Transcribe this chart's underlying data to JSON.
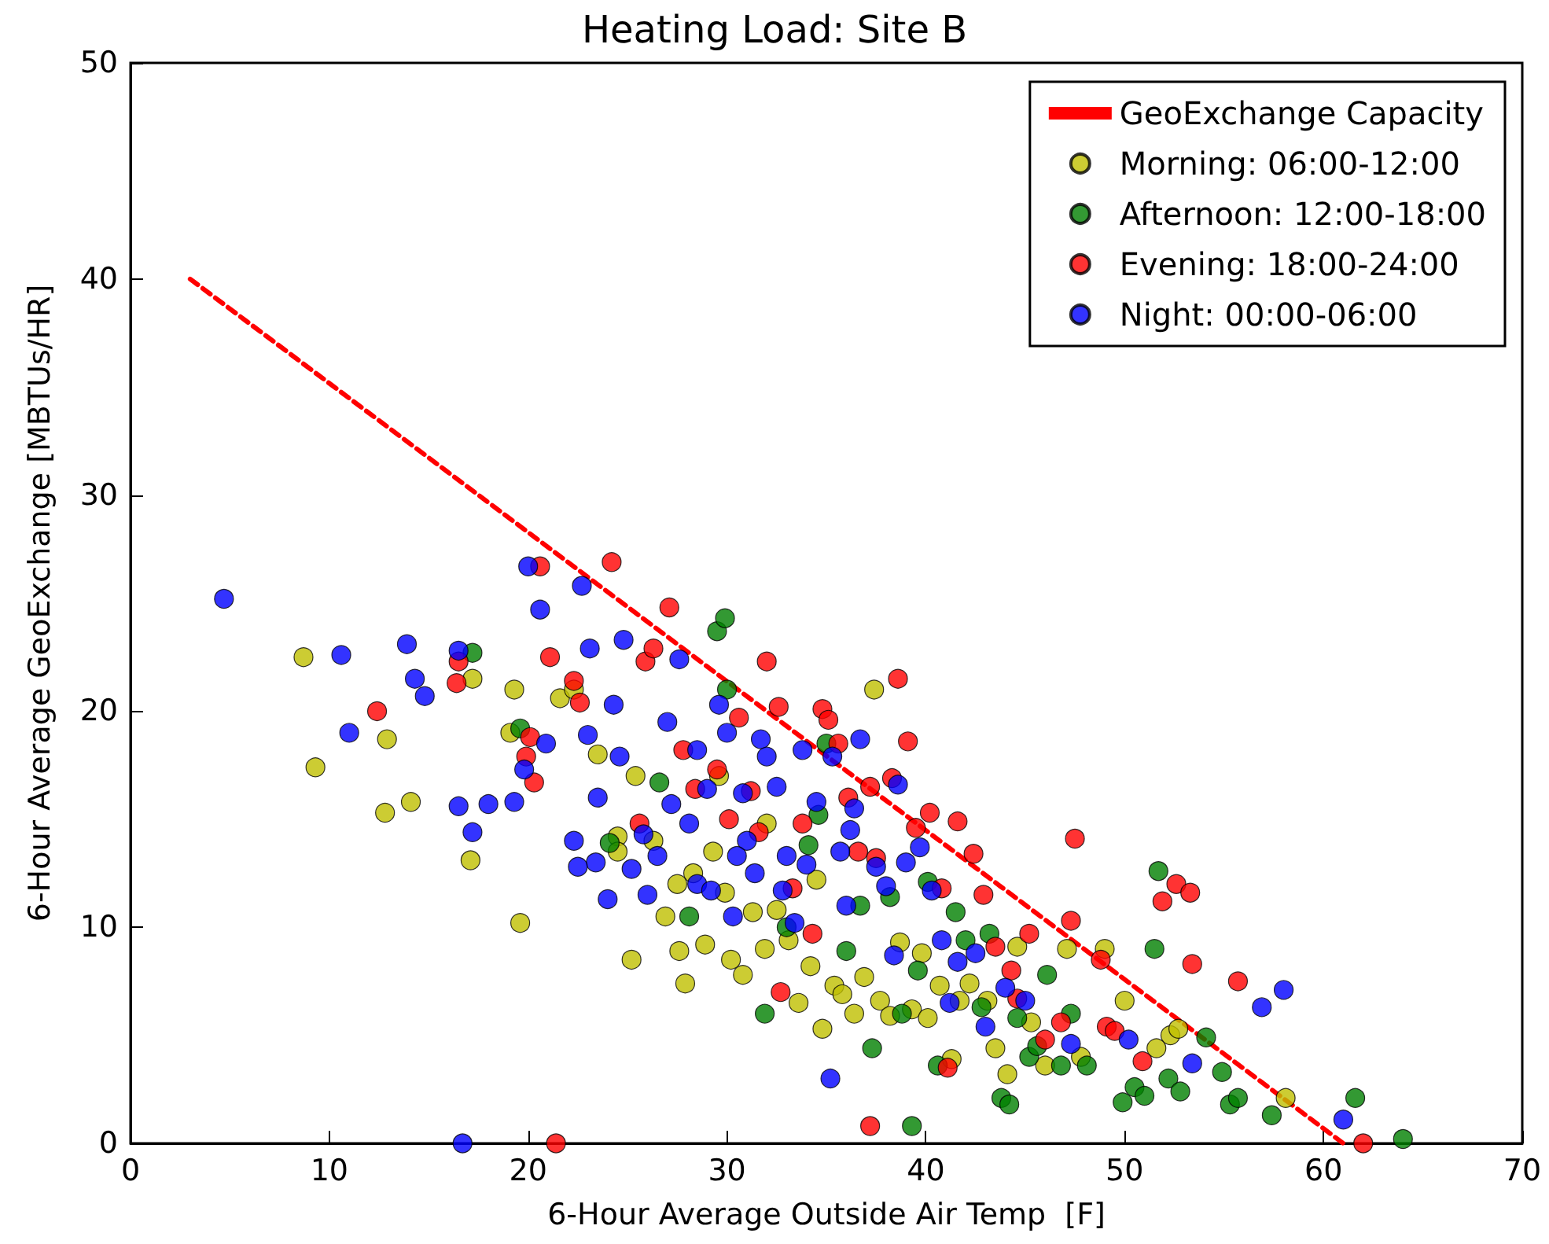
{
  "chart_data": {
    "type": "scatter",
    "title": "Heating Load: Site B",
    "xlabel": "6-Hour Average Outside Air Temp  [F]",
    "ylabel": "6-Hour Average GeoExchange [MBTUs/HR]",
    "xlim": [
      0,
      70
    ],
    "ylim": [
      0,
      50
    ],
    "xticks": [
      0,
      10,
      20,
      30,
      40,
      50,
      60,
      70
    ],
    "yticks": [
      0,
      10,
      20,
      30,
      40,
      50
    ],
    "grid": false,
    "legend": "top right",
    "marker": "circle",
    "series": [
      {
        "name": "GeoExchange Capacity",
        "type": "line",
        "line_style": "dashed",
        "marker": "none",
        "color": "#ff0000",
        "x": [
          3,
          61
        ],
        "values": [
          40,
          0
        ]
      },
      {
        "name": "Morning: 06:00-12:00",
        "color": "#bfbf00",
        "x": [
          8.7,
          9.3,
          12.8,
          12.9,
          14.1,
          17.1,
          17.2,
          19.1,
          19.6,
          19.3,
          21.6,
          22.3,
          23.5,
          24.5,
          25.2,
          25.4,
          26.3,
          26.9,
          27.6,
          27.9,
          28.3,
          28.9,
          29.3,
          29.9,
          30.2,
          30.8,
          31.3,
          31.9,
          32.5,
          33.1,
          33.6,
          34.2,
          34.8,
          35.4,
          35.8,
          36.4,
          36.9,
          37.4,
          37.7,
          38.2,
          38.7,
          39.3,
          39.8,
          40.1,
          40.7,
          41.3,
          41.7,
          42.2,
          43.1,
          43.5,
          44.1,
          44.6,
          45.3,
          46,
          47.1,
          47.8,
          49,
          50,
          52.3,
          52.7,
          51.6,
          58.1,
          29.6,
          24.5,
          34.5,
          32,
          27.5
        ],
        "values": [
          22.5,
          17.4,
          15.3,
          18.7,
          15.8,
          13.1,
          21.5,
          19,
          10.2,
          21,
          20.6,
          21,
          18,
          14.2,
          8.5,
          17,
          14,
          10.5,
          8.9,
          7.4,
          12.5,
          9.2,
          13.5,
          11.6,
          8.5,
          7.8,
          10.7,
          9,
          10.8,
          9.4,
          6.5,
          8.2,
          5.3,
          7.3,
          6.9,
          6,
          7.7,
          21,
          6.6,
          5.9,
          9.3,
          6.2,
          8.8,
          5.8,
          7.3,
          3.9,
          6.6,
          7.4,
          6.6,
          4.4,
          3.2,
          9.1,
          5.6,
          3.6,
          9,
          4,
          9,
          6.6,
          5,
          5.3,
          4.4,
          2.1,
          17,
          13.5,
          12.2,
          14.8,
          12
        ]
      },
      {
        "name": "Afternoon: 12:00-18:00",
        "color": "#008000",
        "x": [
          17.2,
          19.6,
          24.1,
          26.6,
          28.1,
          29.5,
          29.9,
          30,
          31.9,
          34.1,
          34.6,
          35,
          36,
          37.3,
          38.2,
          39.3,
          39.6,
          40.1,
          40.6,
          41.5,
          42,
          42.8,
          43.2,
          43.8,
          44.2,
          44.6,
          45.2,
          45.6,
          46.1,
          46.8,
          47.3,
          48.1,
          49.9,
          50.5,
          51,
          51.5,
          51.7,
          52.2,
          52.8,
          54.1,
          54.9,
          55.3,
          55.7,
          57.4,
          61.6,
          64,
          36.7,
          33,
          38.8
        ],
        "values": [
          22.7,
          19.2,
          13.9,
          16.7,
          10.5,
          23.7,
          24.3,
          21,
          6,
          13.8,
          15.2,
          18.5,
          8.9,
          4.4,
          11.4,
          0.8,
          8,
          12.1,
          3.6,
          10.7,
          9.4,
          6.3,
          9.7,
          2.1,
          1.8,
          5.8,
          4,
          4.5,
          7.8,
          3.6,
          6,
          3.6,
          1.9,
          2.6,
          2.2,
          9,
          12.6,
          3,
          2.4,
          4.9,
          3.3,
          1.8,
          2.1,
          1.3,
          2.1,
          0.2,
          11,
          10,
          6
        ]
      },
      {
        "name": "Evening: 18:00-24:00",
        "color": "#ff0000",
        "x": [
          12.4,
          16.4,
          16.5,
          19.9,
          20.1,
          20.3,
          20.6,
          21.1,
          21.4,
          22.3,
          22.6,
          24.2,
          25.6,
          25.9,
          26.3,
          27.1,
          27.8,
          28.4,
          29.5,
          30.1,
          30.6,
          31.2,
          31.6,
          32,
          32.6,
          32.7,
          33.3,
          33.8,
          34.3,
          34.8,
          35.1,
          35.6,
          36.1,
          36.6,
          37.2,
          37.2,
          37.5,
          38.3,
          38.6,
          39.1,
          39.5,
          40.2,
          40.8,
          41.1,
          41.6,
          42.4,
          42.9,
          43.5,
          44.3,
          44.6,
          45.2,
          46,
          46.8,
          47.5,
          47.3,
          48.8,
          49.1,
          49.5,
          50.9,
          51.9,
          52.6,
          53.3,
          53.4,
          55.7,
          62
        ],
        "values": [
          20,
          21.3,
          22.3,
          17.9,
          18.8,
          16.7,
          26.7,
          22.5,
          0,
          21.4,
          20.4,
          26.9,
          14.8,
          22.3,
          22.9,
          24.8,
          18.2,
          16.4,
          17.3,
          15,
          19.7,
          16.3,
          14.4,
          22.3,
          20.2,
          7,
          11.8,
          14.8,
          9.7,
          20.1,
          19.6,
          18.5,
          16,
          13.5,
          16.5,
          0.8,
          13.2,
          16.9,
          21.5,
          18.6,
          14.6,
          15.3,
          11.8,
          3.5,
          14.9,
          13.4,
          11.5,
          9.1,
          8,
          6.7,
          9.7,
          4.8,
          5.6,
          14.1,
          10.3,
          8.5,
          5.4,
          5.2,
          3.8,
          11.2,
          12,
          11.6,
          8.3,
          7.5,
          0
        ]
      },
      {
        "name": "Night: 00:00-06:00",
        "color": "#0000ff",
        "x": [
          4.7,
          10.6,
          11,
          13.9,
          14.3,
          14.8,
          16.5,
          16.7,
          16.5,
          17.2,
          18,
          19.3,
          19.8,
          20,
          20.6,
          20.9,
          22.3,
          22.7,
          23,
          23.1,
          23.4,
          23.5,
          24,
          24.3,
          24.6,
          24.8,
          25.2,
          25.8,
          26.5,
          27,
          27.2,
          27.6,
          28.1,
          28.5,
          29,
          29.2,
          29.6,
          30,
          30.3,
          30.8,
          31,
          31.4,
          31.7,
          32,
          32.5,
          33,
          33.4,
          33.8,
          34,
          34.5,
          35.2,
          35.3,
          35.7,
          36,
          36.4,
          36.7,
          37.5,
          38,
          38.4,
          38.6,
          39,
          39.7,
          40.3,
          40.8,
          41.2,
          41.6,
          42.5,
          43,
          44,
          45,
          47.3,
          50.2,
          53.4,
          56.9,
          58,
          61,
          36.2,
          28.5,
          30.5,
          32.8,
          26,
          22.5
        ],
        "values": [
          25.2,
          22.6,
          19,
          23.1,
          21.5,
          20.7,
          15.6,
          0,
          22.8,
          14.4,
          15.7,
          15.8,
          17.3,
          26.7,
          24.7,
          18.5,
          14,
          25.8,
          18.9,
          22.9,
          13,
          16,
          11.3,
          20.3,
          17.9,
          23.3,
          12.7,
          14.3,
          13.3,
          19.5,
          15.7,
          22.4,
          14.8,
          12,
          16.4,
          11.7,
          20.3,
          19,
          10.5,
          16.2,
          14,
          12.5,
          18.7,
          17.9,
          16.5,
          13.3,
          10.2,
          18.2,
          12.9,
          15.8,
          3,
          17.9,
          13.5,
          11,
          15.5,
          18.7,
          12.8,
          11.9,
          8.7,
          16.6,
          13,
          13.7,
          11.7,
          9.4,
          6.5,
          8.4,
          8.8,
          5.4,
          7.2,
          6.6,
          4.6,
          4.8,
          3.7,
          6.3,
          7.1,
          1.1,
          14.5,
          18.2,
          13.3,
          11.7,
          11.5,
          12.8
        ]
      }
    ]
  }
}
